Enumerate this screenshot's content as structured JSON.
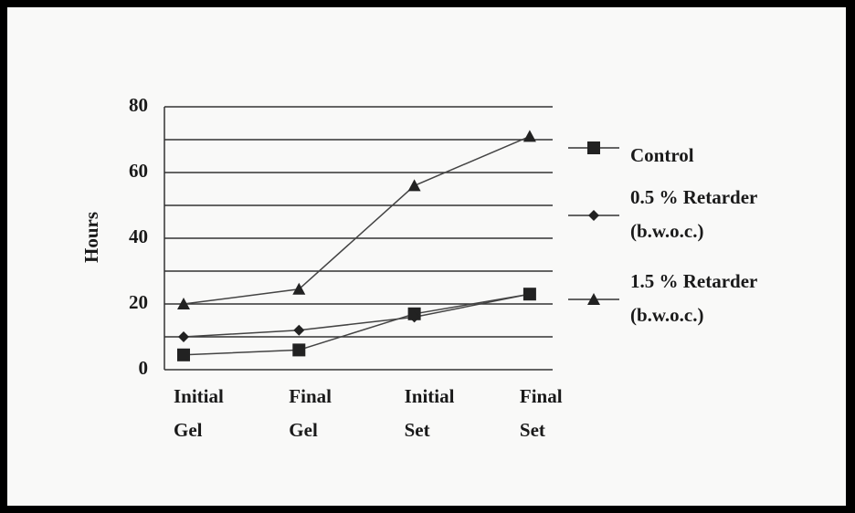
{
  "chart_data": {
    "type": "line",
    "y_label": "Hours",
    "categories": [
      "Initial\nGel",
      "Final\nGel",
      "Initial\nSet",
      "Final\nSet"
    ],
    "series": [
      {
        "name": "Control",
        "marker": "square",
        "color": "#222222",
        "values": [
          4.5,
          6,
          17,
          23
        ]
      },
      {
        "name": "0.5 % Retarder\n(b.w.o.c.)",
        "marker": "diamond",
        "color": "#222222",
        "values": [
          10,
          12,
          16,
          23
        ]
      },
      {
        "name": "1.5 % Retarder\n(b.w.o.c.)",
        "marker": "triangle",
        "color": "#222222",
        "values": [
          20,
          24.5,
          56,
          71
        ]
      }
    ],
    "ylim": [
      0,
      80
    ],
    "yticks": [
      0,
      20,
      40,
      60,
      80
    ],
    "minor_yticks": [
      10,
      30,
      50,
      70
    ],
    "grid": true,
    "legend": "right"
  }
}
